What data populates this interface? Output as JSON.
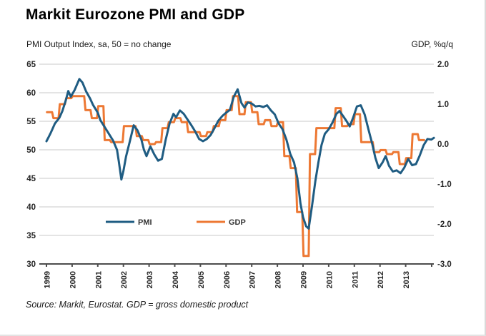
{
  "header": {
    "title": "Markit Eurozone PMI and GDP"
  },
  "chart": {
    "left_axis_title": "PMI Output Index, sa, 50 = no change",
    "right_axis_title": "GDP, %q/q"
  },
  "footer": {
    "source": "Source: Markit, Eurostat. GDP = gross domestic product"
  },
  "colors": {
    "pmi": "#1f5c82",
    "gdp": "#ed7833",
    "grid": "#c8c8c8",
    "axis": "#4d4d4d",
    "text": "#262626"
  },
  "chart_data": {
    "type": "line",
    "title": "Markit Eurozone PMI and GDP",
    "grid": "horizontal",
    "legend": {
      "position": "inside-bottom",
      "entries": [
        "PMI",
        "GDP"
      ]
    },
    "left_axis": {
      "label": "PMI Output Index, sa, 50 = no change",
      "min": 30,
      "max": 65,
      "ticks": [
        65,
        60,
        55,
        50,
        45,
        40,
        35,
        30
      ]
    },
    "right_axis": {
      "label": "GDP, %q/q",
      "min": -3.0,
      "max": 2.0,
      "ticks": [
        2.0,
        1.0,
        0.0,
        -1.0,
        -2.0,
        -3.0
      ],
      "tick_labels": [
        "2.0",
        "1.0",
        "0.0",
        "-1.0",
        "-2.0",
        "-3.0"
      ]
    },
    "x_axis": {
      "min": 1999,
      "max": 2014.2,
      "tick_years": [
        1999,
        2000,
        2001,
        2002,
        2003,
        2004,
        2005,
        2006,
        2007,
        2008,
        2009,
        2010,
        2011,
        2012,
        2013
      ]
    },
    "series": [
      {
        "name": "PMI",
        "axis": "left",
        "color": "#1f5c82",
        "points": [
          [
            1999.0,
            51.5
          ],
          [
            1999.08,
            52.2
          ],
          [
            1999.17,
            53.0
          ],
          [
            1999.33,
            54.6
          ],
          [
            1999.5,
            55.6
          ],
          [
            1999.62,
            56.8
          ],
          [
            1999.75,
            58.6
          ],
          [
            1999.85,
            60.3
          ],
          [
            1999.95,
            59.3
          ],
          [
            2000.1,
            60.5
          ],
          [
            2000.28,
            62.4
          ],
          [
            2000.4,
            61.8
          ],
          [
            2000.55,
            60.2
          ],
          [
            2000.7,
            59.0
          ],
          [
            2000.81,
            57.9
          ],
          [
            2001.0,
            56.5
          ],
          [
            2001.1,
            55.2
          ],
          [
            2001.35,
            53.4
          ],
          [
            2001.6,
            51.6
          ],
          [
            2001.75,
            50.0
          ],
          [
            2001.82,
            48.0
          ],
          [
            2001.92,
            44.8
          ],
          [
            2002.0,
            46.3
          ],
          [
            2002.1,
            48.8
          ],
          [
            2002.25,
            51.5
          ],
          [
            2002.4,
            54.3
          ],
          [
            2002.55,
            53.4
          ],
          [
            2002.7,
            51.8
          ],
          [
            2002.8,
            50.0
          ],
          [
            2002.9,
            48.9
          ],
          [
            2003.05,
            50.6
          ],
          [
            2003.2,
            49.2
          ],
          [
            2003.35,
            48.1
          ],
          [
            2003.5,
            48.4
          ],
          [
            2003.65,
            51.8
          ],
          [
            2003.8,
            54.6
          ],
          [
            2003.95,
            56.3
          ],
          [
            2004.05,
            55.7
          ],
          [
            2004.2,
            56.9
          ],
          [
            2004.35,
            56.3
          ],
          [
            2004.5,
            55.3
          ],
          [
            2004.65,
            54.3
          ],
          [
            2004.8,
            53.2
          ],
          [
            2004.95,
            51.9
          ],
          [
            2005.1,
            51.5
          ],
          [
            2005.25,
            51.9
          ],
          [
            2005.4,
            52.6
          ],
          [
            2005.55,
            53.8
          ],
          [
            2005.7,
            55.1
          ],
          [
            2005.85,
            55.9
          ],
          [
            2006.0,
            56.5
          ],
          [
            2006.15,
            57.0
          ],
          [
            2006.3,
            59.3
          ],
          [
            2006.45,
            60.6
          ],
          [
            2006.6,
            58.2
          ],
          [
            2006.72,
            57.4
          ],
          [
            2006.85,
            58.3
          ],
          [
            2007.0,
            58.1
          ],
          [
            2007.15,
            57.6
          ],
          [
            2007.3,
            57.7
          ],
          [
            2007.45,
            57.5
          ],
          [
            2007.6,
            57.8
          ],
          [
            2007.75,
            56.9
          ],
          [
            2007.9,
            56.2
          ],
          [
            2008.05,
            54.6
          ],
          [
            2008.2,
            53.6
          ],
          [
            2008.35,
            51.8
          ],
          [
            2008.5,
            49.3
          ],
          [
            2008.65,
            47.8
          ],
          [
            2008.78,
            45.0
          ],
          [
            2008.9,
            40.6
          ],
          [
            2009.0,
            38.2
          ],
          [
            2009.12,
            36.6
          ],
          [
            2009.22,
            36.2
          ],
          [
            2009.35,
            40.2
          ],
          [
            2009.48,
            44.5
          ],
          [
            2009.6,
            47.8
          ],
          [
            2009.72,
            50.8
          ],
          [
            2009.85,
            52.8
          ],
          [
            2010.0,
            53.6
          ],
          [
            2010.15,
            54.8
          ],
          [
            2010.3,
            56.3
          ],
          [
            2010.42,
            56.8
          ],
          [
            2010.55,
            56.0
          ],
          [
            2010.7,
            55.0
          ],
          [
            2010.82,
            54.1
          ],
          [
            2010.95,
            55.6
          ],
          [
            2011.1,
            57.6
          ],
          [
            2011.25,
            57.8
          ],
          [
            2011.4,
            56.2
          ],
          [
            2011.55,
            53.6
          ],
          [
            2011.7,
            51.0
          ],
          [
            2011.82,
            48.6
          ],
          [
            2011.95,
            46.8
          ],
          [
            2012.1,
            47.8
          ],
          [
            2012.22,
            48.9
          ],
          [
            2012.35,
            47.2
          ],
          [
            2012.5,
            46.2
          ],
          [
            2012.65,
            46.4
          ],
          [
            2012.8,
            45.9
          ],
          [
            2012.95,
            46.9
          ],
          [
            2013.1,
            48.4
          ],
          [
            2013.25,
            47.3
          ],
          [
            2013.4,
            47.5
          ],
          [
            2013.55,
            49.0
          ],
          [
            2013.7,
            50.8
          ],
          [
            2013.85,
            51.9
          ],
          [
            2014.0,
            51.8
          ],
          [
            2014.1,
            52.1
          ]
        ]
      },
      {
        "name": "GDP",
        "axis": "right",
        "color": "#ed7833",
        "style": "step",
        "start_year": 1999,
        "quarterly_values": [
          0.8,
          0.65,
          1.0,
          1.15,
          1.2,
          1.2,
          0.85,
          0.65,
          0.95,
          0.1,
          0.05,
          0.05,
          0.45,
          0.45,
          0.2,
          0.1,
          0.0,
          0.05,
          0.4,
          0.55,
          0.65,
          0.55,
          0.3,
          0.3,
          0.2,
          0.3,
          0.45,
          0.6,
          0.85,
          1.2,
          0.75,
          1.05,
          0.8,
          0.5,
          0.6,
          0.45,
          0.55,
          -0.3,
          -0.6,
          -1.7,
          -2.8,
          -0.25,
          0.4,
          0.4,
          0.4,
          0.9,
          0.45,
          0.5,
          0.75,
          0.05,
          0.05,
          -0.2,
          -0.15,
          -0.25,
          -0.2,
          -0.5,
          -0.35,
          0.25,
          0.1
        ]
      }
    ]
  }
}
